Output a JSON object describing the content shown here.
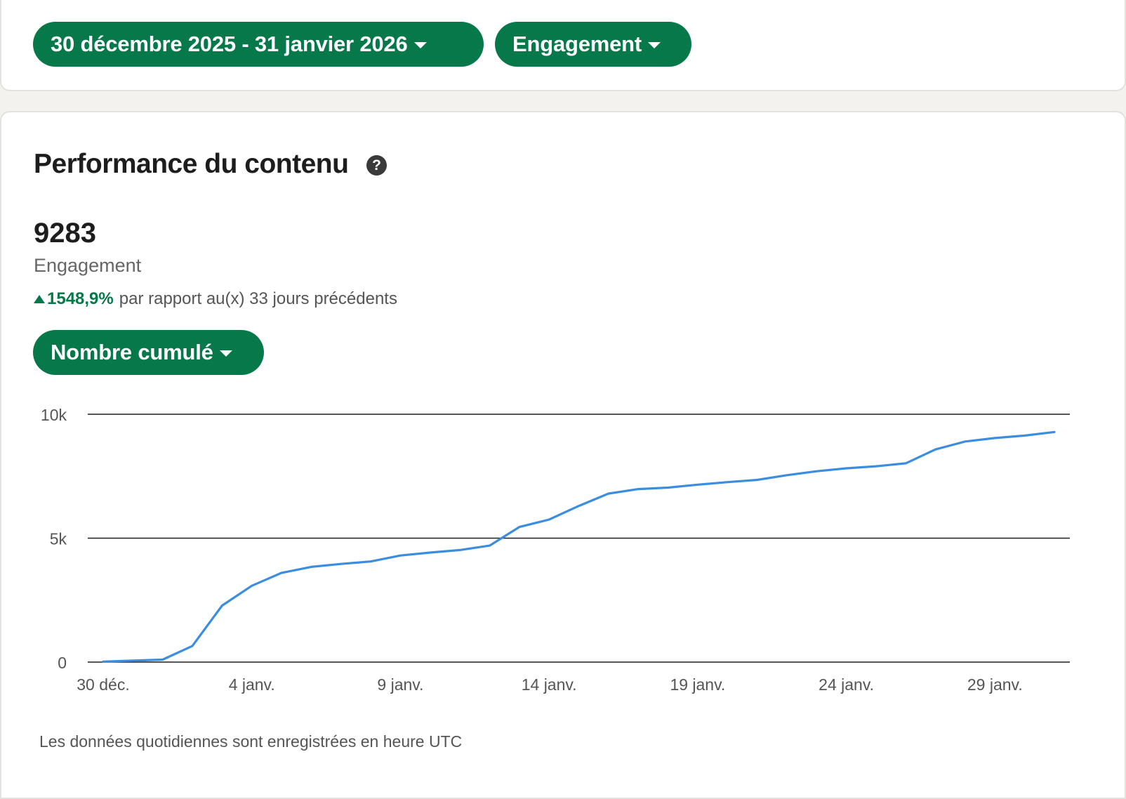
{
  "filters": {
    "date_range": "30 décembre 2025 - 31 janvier 2026",
    "metric": "Engagement"
  },
  "section": {
    "title": "Performance du contenu",
    "help_icon": "?"
  },
  "summary": {
    "value": "9283",
    "label": "Engagement",
    "change_pct": "1548,9%",
    "change_text": "par rapport au(x) 33 jours précédents"
  },
  "aggregation": {
    "label": "Nombre cumulé"
  },
  "footnote": "Les données quotidiennes sont enregistrées en heure UTC",
  "colors": {
    "accent": "#07784a",
    "line": "#3b8de0",
    "gridline": "#1f1f1f"
  },
  "chart_data": {
    "type": "line",
    "x": [
      "30 déc.",
      "31 déc.",
      "1 janv.",
      "2 janv.",
      "3 janv.",
      "4 janv.",
      "5 janv.",
      "6 janv.",
      "7 janv.",
      "8 janv.",
      "9 janv.",
      "10 janv.",
      "11 janv.",
      "12 janv.",
      "13 janv.",
      "14 janv.",
      "15 janv.",
      "16 janv.",
      "17 janv.",
      "18 janv.",
      "19 janv.",
      "20 janv.",
      "21 janv.",
      "22 janv.",
      "23 janv.",
      "24 janv.",
      "25 janv.",
      "26 janv.",
      "27 janv.",
      "28 janv.",
      "29 janv.",
      "30 janv.",
      "31 janv."
    ],
    "series": [
      {
        "values": [
          20,
          60,
          100,
          650,
          2280,
          3080,
          3600,
          3840,
          3960,
          4060,
          4300,
          4420,
          4520,
          4700,
          5450,
          5750,
          6300,
          6800,
          6980,
          7040,
          7160,
          7260,
          7350,
          7540,
          7700,
          7820,
          7900,
          8020,
          8580,
          8900,
          9040,
          9140,
          9283
        ]
      }
    ],
    "x_tick_labels": [
      "30 déc.",
      "4 janv.",
      "9 janv.",
      "14 janv.",
      "19 janv.",
      "24 janv.",
      "29 janv."
    ],
    "y_tick_labels": [
      "0",
      "5k",
      "10k"
    ],
    "y_ticks": [
      0,
      5000,
      10000
    ],
    "ylim": [
      0,
      10000
    ],
    "grid": true
  }
}
